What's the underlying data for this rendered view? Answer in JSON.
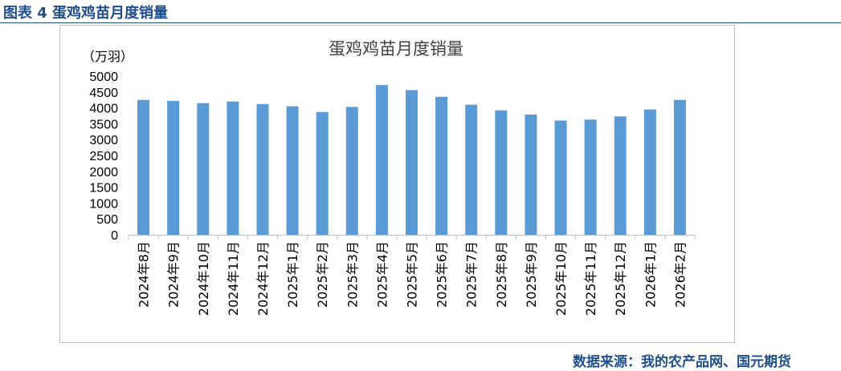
{
  "figure": {
    "caption": "图表 4  蛋鸡鸡苗月度销量",
    "source": "数据来源：我的农产品网、国元期货"
  },
  "colors": {
    "bar": "#5b9bd5",
    "axis": "#bfbfbf",
    "caption": "#1f4e8c"
  },
  "chart_data": {
    "type": "bar",
    "title": "蛋鸡鸡苗月度销量",
    "ylabel": "（万羽）",
    "xlabel": "",
    "ylim": [
      0,
      5000
    ],
    "yticks": [
      0,
      500,
      1000,
      1500,
      2000,
      2500,
      3000,
      3500,
      4000,
      4500,
      5000
    ],
    "grid": false,
    "categories": [
      "2024年8月",
      "2024年9月",
      "2024年10月",
      "2024年11月",
      "2024年12月",
      "2025年1月",
      "2025年2月",
      "2025年3月",
      "2025年4月",
      "2025年5月",
      "2025年6月",
      "2025年7月",
      "2025年8月",
      "2025年9月",
      "2025年10月",
      "2025年11月",
      "2025年12月",
      "2026年1月",
      "2026年2月"
    ],
    "values": [
      4250,
      4220,
      4150,
      4200,
      4120,
      4050,
      3870,
      4030,
      4720,
      4560,
      4350,
      4100,
      3920,
      3790,
      3600,
      3630,
      3730,
      3950,
      4250
    ]
  }
}
